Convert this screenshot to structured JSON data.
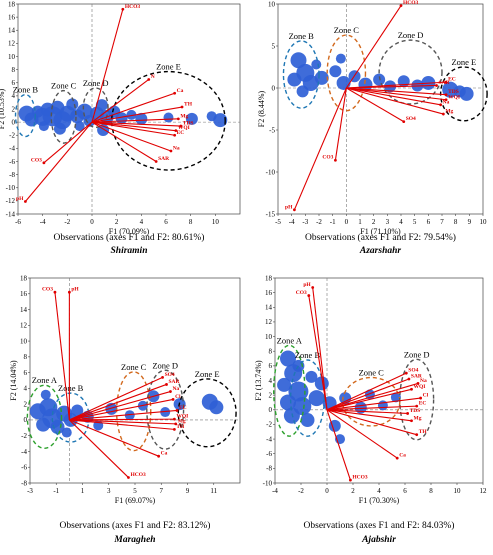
{
  "chart_data": [
    {
      "type": "scatter",
      "title": "Shiramin",
      "xlabel": "F1 (70.09%)",
      "ylabel": "F2 (10.53%)",
      "caption": "Observations (axes F1 and F2: 80.61%)",
      "xlim": [
        -6,
        12
      ],
      "ylim": [
        -14,
        18
      ],
      "xticks": [
        "-6",
        "-4",
        "-2",
        "0",
        "2",
        "4",
        "6",
        "8",
        "10"
      ],
      "yticks": [
        "18",
        "16",
        "14",
        "12",
        "10",
        "8",
        "6",
        "4",
        "2",
        "0",
        "-2",
        "-4",
        "-6",
        "-8",
        "-10",
        "-12",
        "-14"
      ],
      "zones": [
        {
          "name": "Zone B",
          "color": "#1f77b4",
          "cx": -5.4,
          "cy": 1.0,
          "rx": 0.8,
          "ry": 3.2
        },
        {
          "name": "Zone C",
          "color": "#555555",
          "cx": -2.3,
          "cy": 0.8,
          "rx": 1.0,
          "ry": 4.0
        },
        {
          "name": "Zone D",
          "color": "#555555",
          "cx": 0.3,
          "cy": 2.2,
          "rx": 1.0,
          "ry": 3.0
        },
        {
          "name": "Zone E",
          "color": "#000000",
          "cx": 6.2,
          "cy": 0.2,
          "rx": 4.6,
          "ry": 7.5
        }
      ],
      "variables": [
        {
          "label": "HCO3",
          "x": 2.5,
          "y": 17.2
        },
        {
          "label": "N",
          "x": 4.6,
          "y": 6.5
        },
        {
          "label": "Ca",
          "x": 6.7,
          "y": 4.4
        },
        {
          "label": "TH",
          "x": 7.3,
          "y": 2.3
        },
        {
          "label": "Mg",
          "x": 7.0,
          "y": 0.5
        },
        {
          "label": "TDS",
          "x": 7.2,
          "y": -0.6
        },
        {
          "label": "WQI",
          "x": 6.8,
          "y": -1.3
        },
        {
          "label": "EC",
          "x": 6.7,
          "y": -2.0
        },
        {
          "label": "Na",
          "x": 6.4,
          "y": -4.4
        },
        {
          "label": "SAR",
          "x": 5.2,
          "y": -6.0
        },
        {
          "label": "CO3",
          "x": -3.9,
          "y": -6.2
        },
        {
          "label": "pH",
          "x": -5.4,
          "y": -12.1
        }
      ],
      "points": [
        {
          "x": -5.3,
          "y": 1.3,
          "s": 8
        },
        {
          "x": -4.9,
          "y": 0.4,
          "s": 7
        },
        {
          "x": -4.4,
          "y": 1.6,
          "s": 6
        },
        {
          "x": -4.0,
          "y": 0.8,
          "s": 9
        },
        {
          "x": -3.6,
          "y": 1.9,
          "s": 7
        },
        {
          "x": -3.2,
          "y": 0.9,
          "s": 10
        },
        {
          "x": -2.8,
          "y": 2.2,
          "s": 7
        },
        {
          "x": -2.4,
          "y": 0.3,
          "s": 9
        },
        {
          "x": -2.0,
          "y": 1.3,
          "s": 8
        },
        {
          "x": -1.6,
          "y": 2.7,
          "s": 6
        },
        {
          "x": -1.2,
          "y": 0.9,
          "s": 7
        },
        {
          "x": -0.6,
          "y": 1.6,
          "s": 8
        },
        {
          "x": -0.2,
          "y": 0.2,
          "s": 6
        },
        {
          "x": 0.4,
          "y": 1.3,
          "s": 7
        },
        {
          "x": 0.8,
          "y": 2.6,
          "s": 6
        },
        {
          "x": 1.2,
          "y": 0.8,
          "s": 7
        },
        {
          "x": 1.8,
          "y": 1.6,
          "s": 6
        },
        {
          "x": 2.4,
          "y": 0.6,
          "s": 6
        },
        {
          "x": 3.2,
          "y": 1.1,
          "s": 5
        },
        {
          "x": 4.0,
          "y": 0.5,
          "s": 6
        },
        {
          "x": 6.2,
          "y": 0.7,
          "s": 5
        },
        {
          "x": 8.1,
          "y": 0.5,
          "s": 6
        },
        {
          "x": 9.7,
          "y": 0.9,
          "s": 5
        },
        {
          "x": 10.4,
          "y": 0.3,
          "s": 7
        },
        {
          "x": -2.6,
          "y": -1.0,
          "s": 6
        },
        {
          "x": -3.9,
          "y": -0.6,
          "s": 5
        },
        {
          "x": 0.9,
          "y": -1.2,
          "s": 6
        },
        {
          "x": -1.0,
          "y": -0.6,
          "s": 5
        }
      ]
    },
    {
      "type": "scatter",
      "title": "Azarshahr",
      "xlabel": "F1 (71.10%)",
      "ylabel": "F2 (8.44%)",
      "caption": "Observations (axes F1 and F2: 79.54%)",
      "xlim": [
        -5,
        10
      ],
      "ylim": [
        -15,
        10
      ],
      "xticks": [
        "-5",
        "-4",
        "-3",
        "-2",
        "-1",
        "0",
        "1",
        "2",
        "3",
        "4",
        "5",
        "6",
        "7",
        "8",
        "9",
        "10"
      ],
      "yticks": [
        "10",
        "5",
        "0",
        "-5",
        "-10",
        "-15"
      ],
      "zones": [
        {
          "name": "Zone B",
          "color": "#1f77b4",
          "cx": -3.3,
          "cy": 1.6,
          "rx": 1.3,
          "ry": 4.0
        },
        {
          "name": "Zone C",
          "color": "#d2691e",
          "cx": 0.0,
          "cy": 1.8,
          "rx": 1.4,
          "ry": 4.5
        },
        {
          "name": "Zone D",
          "color": "#555555",
          "cx": 4.7,
          "cy": 1.9,
          "rx": 2.3,
          "ry": 3.8
        },
        {
          "name": "Zone E",
          "color": "#000000",
          "cx": 8.6,
          "cy": -0.7,
          "rx": 1.7,
          "ry": 3.2
        }
      ],
      "variables": [
        {
          "label": "HCO3",
          "x": 4.0,
          "y": 9.8
        },
        {
          "label": "EC",
          "x": 7.3,
          "y": 0.7
        },
        {
          "label": "SAR",
          "x": 6.6,
          "y": 0.3
        },
        {
          "label": "TDS",
          "x": 7.3,
          "y": -0.8
        },
        {
          "label": "WQI",
          "x": 7.3,
          "y": -1.4
        },
        {
          "label": "Na",
          "x": 6.9,
          "y": -2.0
        },
        {
          "label": "Mg",
          "x": 7.1,
          "y": -3.1
        },
        {
          "label": "SO4",
          "x": 4.2,
          "y": -4.0
        },
        {
          "label": "CO3",
          "x": -0.8,
          "y": -8.6
        },
        {
          "label": "pH",
          "x": -3.8,
          "y": -14.5
        }
      ],
      "points": [
        {
          "x": -3.5,
          "y": 3.3,
          "s": 8
        },
        {
          "x": -3.0,
          "y": 1.8,
          "s": 9
        },
        {
          "x": -3.8,
          "y": 1.0,
          "s": 7
        },
        {
          "x": -2.6,
          "y": 0.6,
          "s": 8
        },
        {
          "x": -3.2,
          "y": -0.4,
          "s": 6
        },
        {
          "x": -1.8,
          "y": 1.2,
          "s": 7
        },
        {
          "x": -0.8,
          "y": 2.0,
          "s": 6
        },
        {
          "x": -0.2,
          "y": 0.6,
          "s": 7
        },
        {
          "x": 0.6,
          "y": 1.4,
          "s": 6
        },
        {
          "x": 1.4,
          "y": 0.4,
          "s": 7
        },
        {
          "x": 2.4,
          "y": 1.0,
          "s": 6
        },
        {
          "x": 3.2,
          "y": 0.2,
          "s": 6
        },
        {
          "x": 4.2,
          "y": 0.8,
          "s": 6
        },
        {
          "x": 5.2,
          "y": 0.3,
          "s": 6
        },
        {
          "x": 6.0,
          "y": 0.6,
          "s": 7
        },
        {
          "x": 7.6,
          "y": -0.2,
          "s": 8
        },
        {
          "x": 8.3,
          "y": -0.4,
          "s": 6
        },
        {
          "x": 8.8,
          "y": -0.7,
          "s": 7
        },
        {
          "x": -0.4,
          "y": 3.5,
          "s": 5
        },
        {
          "x": -2.2,
          "y": 2.8,
          "s": 5
        }
      ]
    },
    {
      "type": "scatter",
      "title": "Maragheh",
      "xlabel": "F1 (69.07%)",
      "ylabel": "F2 (14.04%)",
      "caption": "Observations (axes F1 and F2: 83.12%)",
      "xlim": [
        -3,
        13
      ],
      "ylim": [
        -8,
        18
      ],
      "xticks": [
        "-3",
        "-1",
        "1",
        "3",
        "5",
        "7",
        "9",
        "11"
      ],
      "yticks": [
        "18",
        "16",
        "14",
        "12",
        "10",
        "8",
        "6",
        "4",
        "2",
        "0",
        "-2",
        "-4",
        "-6",
        "-8"
      ],
      "zones": [
        {
          "name": "Zone A",
          "color": "#2ca02c",
          "cx": -1.9,
          "cy": 0.4,
          "rx": 1.3,
          "ry": 4.0
        },
        {
          "name": "Zone B",
          "color": "#1f77b4",
          "cx": 0.1,
          "cy": 0.3,
          "rx": 1.4,
          "ry": 3.1
        },
        {
          "name": "Zone C",
          "color": "#d2691e",
          "cx": 4.9,
          "cy": 1.1,
          "rx": 1.3,
          "ry": 5.0
        },
        {
          "name": "Zone D",
          "color": "#555555",
          "cx": 7.3,
          "cy": 1.3,
          "rx": 1.4,
          "ry": 5.0
        },
        {
          "name": "Zone E",
          "color": "#000000",
          "cx": 10.5,
          "cy": 0.9,
          "rx": 2.2,
          "ry": 4.3
        }
      ],
      "variables": [
        {
          "label": "CO3",
          "x": -1.1,
          "y": 16.2
        },
        {
          "label": "pH",
          "x": 0.0,
          "y": 16.2
        },
        {
          "label": "SO4",
          "x": 7.1,
          "y": 5.4
        },
        {
          "label": "SAR",
          "x": 7.4,
          "y": 4.5
        },
        {
          "label": "Na",
          "x": 7.7,
          "y": 3.6
        },
        {
          "label": "Cl",
          "x": 7.9,
          "y": 2.6
        },
        {
          "label": "EC",
          "x": 8.2,
          "y": 1.2
        },
        {
          "label": "WQI",
          "x": 8.0,
          "y": 0.1
        },
        {
          "label": "Mg",
          "x": 8.1,
          "y": -0.5
        },
        {
          "label": "TH",
          "x": 8.0,
          "y": -1.2
        },
        {
          "label": "Ca",
          "x": 6.8,
          "y": -4.6
        },
        {
          "label": "HCO3",
          "x": 4.5,
          "y": -7.3
        }
      ],
      "points": [
        {
          "x": -2.4,
          "y": 1.1,
          "s": 8
        },
        {
          "x": -2.0,
          "y": -0.6,
          "s": 7
        },
        {
          "x": -1.6,
          "y": 1.6,
          "s": 9
        },
        {
          "x": -1.3,
          "y": 0.2,
          "s": 10
        },
        {
          "x": -0.9,
          "y": -0.9,
          "s": 7
        },
        {
          "x": -0.4,
          "y": 0.8,
          "s": 8
        },
        {
          "x": 0.1,
          "y": 0.0,
          "s": 7
        },
        {
          "x": 0.6,
          "y": 1.2,
          "s": 6
        },
        {
          "x": -1.8,
          "y": 3.2,
          "s": 5
        },
        {
          "x": 1.4,
          "y": 0.4,
          "s": 6
        },
        {
          "x": 3.2,
          "y": 1.4,
          "s": 6
        },
        {
          "x": 4.6,
          "y": 0.6,
          "s": 5
        },
        {
          "x": 5.6,
          "y": 1.8,
          "s": 5
        },
        {
          "x": 6.4,
          "y": 3.0,
          "s": 6
        },
        {
          "x": 7.3,
          "y": 1.0,
          "s": 5
        },
        {
          "x": 8.4,
          "y": 2.0,
          "s": 6
        },
        {
          "x": 10.7,
          "y": 2.3,
          "s": 8
        },
        {
          "x": 11.2,
          "y": 1.6,
          "s": 7
        },
        {
          "x": -0.2,
          "y": -1.6,
          "s": 5
        },
        {
          "x": 2.2,
          "y": -0.7,
          "s": 5
        }
      ]
    },
    {
      "type": "scatter",
      "title": "Ajabshir",
      "xlabel": "F1 (70.30%)",
      "ylabel": "F2 (13.74%)",
      "caption": "Observations (axes F1 and F2: 84.03%)",
      "xlim": [
        -4,
        12
      ],
      "ylim": [
        -10,
        18
      ],
      "xticks": [
        "-4",
        "-2",
        "0",
        "2",
        "4",
        "6",
        "8",
        "10",
        "12"
      ],
      "yticks": [
        "18",
        "16",
        "14",
        "12",
        "10",
        "8",
        "6",
        "4",
        "2",
        "0",
        "-2",
        "-4",
        "-6",
        "-8",
        "-10"
      ],
      "zones": [
        {
          "name": "Zone A",
          "color": "#2ca02c",
          "cx": -2.9,
          "cy": 2.6,
          "rx": 1.2,
          "ry": 6.2
        },
        {
          "name": "Zone B",
          "color": "#1f77b4",
          "cx": -1.5,
          "cy": 1.6,
          "rx": 1.3,
          "ry": 5.2
        },
        {
          "name": "Zone C",
          "color": "#d2691e",
          "cx": 3.4,
          "cy": 1.1,
          "rx": 2.2,
          "ry": 3.3
        },
        {
          "name": "Zone D",
          "color": "#555555",
          "cx": 6.9,
          "cy": 1.4,
          "rx": 1.3,
          "ry": 5.5
        }
      ],
      "variables": [
        {
          "label": "pH",
          "x": -1.1,
          "y": 16.7
        },
        {
          "label": "CO3",
          "x": -1.4,
          "y": 15.6
        },
        {
          "label": "SO4",
          "x": 6.1,
          "y": 5.0
        },
        {
          "label": "SAR",
          "x": 6.3,
          "y": 4.2
        },
        {
          "label": "Na",
          "x": 7.0,
          "y": 3.6
        },
        {
          "label": "WQI",
          "x": 6.5,
          "y": 2.8
        },
        {
          "label": "Cl",
          "x": 7.2,
          "y": 1.6
        },
        {
          "label": "EC",
          "x": 6.9,
          "y": 0.5
        },
        {
          "label": "TDS",
          "x": 6.2,
          "y": -0.5
        },
        {
          "label": "Mg",
          "x": 6.5,
          "y": -1.5
        },
        {
          "label": "TH",
          "x": 6.9,
          "y": -3.4
        },
        {
          "label": "Ca",
          "x": 5.4,
          "y": -6.6
        },
        {
          "label": "HCO3",
          "x": 1.8,
          "y": -9.6
        }
      ],
      "points": [
        {
          "x": -3.0,
          "y": 7.0,
          "s": 8
        },
        {
          "x": -2.6,
          "y": 5.0,
          "s": 9
        },
        {
          "x": -3.3,
          "y": 3.4,
          "s": 7
        },
        {
          "x": -2.2,
          "y": 2.5,
          "s": 10
        },
        {
          "x": -3.0,
          "y": 1.0,
          "s": 8
        },
        {
          "x": -1.9,
          "y": 0.5,
          "s": 9
        },
        {
          "x": -2.7,
          "y": -0.8,
          "s": 8
        },
        {
          "x": -1.5,
          "y": -1.4,
          "s": 7
        },
        {
          "x": -0.8,
          "y": 1.6,
          "s": 8
        },
        {
          "x": -0.4,
          "y": 3.6,
          "s": 7
        },
        {
          "x": 0.2,
          "y": 0.9,
          "s": 7
        },
        {
          "x": 0.6,
          "y": -2.2,
          "s": 6
        },
        {
          "x": 1.4,
          "y": 1.6,
          "s": 6
        },
        {
          "x": 2.6,
          "y": 0.3,
          "s": 6
        },
        {
          "x": 3.3,
          "y": 2.1,
          "s": 5
        },
        {
          "x": 4.3,
          "y": 0.6,
          "s": 5
        },
        {
          "x": 5.3,
          "y": 1.7,
          "s": 5
        },
        {
          "x": 1.0,
          "y": -4.0,
          "s": 5
        },
        {
          "x": -2.2,
          "y": 6.0,
          "s": 6
        },
        {
          "x": -1.2,
          "y": 4.5,
          "s": 6
        }
      ]
    }
  ]
}
